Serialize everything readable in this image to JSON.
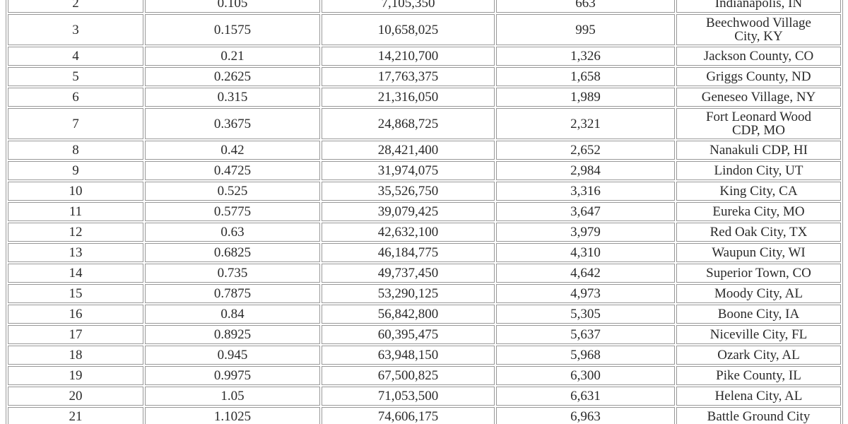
{
  "chart_data": {
    "type": "table",
    "description": "Cropped screenshot of a plain bordered data table; header row not visible. Top row (rank 2) and bottom row (rank 21) are partially cut off by the crop.",
    "columns_visible": false,
    "column_keys": [
      "rank",
      "rate",
      "amount",
      "count",
      "place"
    ],
    "rows": [
      {
        "rank": "2",
        "rate": "0.105",
        "amount": "7,105,350",
        "count": "663",
        "place": "Indianapolis, IN",
        "clipped": "top"
      },
      {
        "rank": "3",
        "rate": "0.1575",
        "amount": "10,658,025",
        "count": "995",
        "place": "Beechwood Village City, KY",
        "place_line1": "Beechwood Village",
        "place_line2": "City, KY"
      },
      {
        "rank": "4",
        "rate": "0.21",
        "amount": "14,210,700",
        "count": "1,326",
        "place": "Jackson County, CO"
      },
      {
        "rank": "5",
        "rate": "0.2625",
        "amount": "17,763,375",
        "count": "1,658",
        "place": "Griggs County, ND"
      },
      {
        "rank": "6",
        "rate": "0.315",
        "amount": "21,316,050",
        "count": "1,989",
        "place": "Geneseo Village, NY"
      },
      {
        "rank": "7",
        "rate": "0.3675",
        "amount": "24,868,725",
        "count": "2,321",
        "place": "Fort Leonard Wood CDP, MO",
        "place_line1": "Fort Leonard Wood",
        "place_line2": "CDP, MO"
      },
      {
        "rank": "8",
        "rate": "0.42",
        "amount": "28,421,400",
        "count": "2,652",
        "place": "Nanakuli CDP, HI"
      },
      {
        "rank": "9",
        "rate": "0.4725",
        "amount": "31,974,075",
        "count": "2,984",
        "place": "Lindon City, UT"
      },
      {
        "rank": "10",
        "rate": "0.525",
        "amount": "35,526,750",
        "count": "3,316",
        "place": "King City, CA"
      },
      {
        "rank": "11",
        "rate": "0.5775",
        "amount": "39,079,425",
        "count": "3,647",
        "place": "Eureka City, MO"
      },
      {
        "rank": "12",
        "rate": "0.63",
        "amount": "42,632,100",
        "count": "3,979",
        "place": "Red Oak City, TX"
      },
      {
        "rank": "13",
        "rate": "0.6825",
        "amount": "46,184,775",
        "count": "4,310",
        "place": "Waupun City, WI"
      },
      {
        "rank": "14",
        "rate": "0.735",
        "amount": "49,737,450",
        "count": "4,642",
        "place": "Superior Town, CO"
      },
      {
        "rank": "15",
        "rate": "0.7875",
        "amount": "53,290,125",
        "count": "4,973",
        "place": "Moody City, AL"
      },
      {
        "rank": "16",
        "rate": "0.84",
        "amount": "56,842,800",
        "count": "5,305",
        "place": "Boone City, IA"
      },
      {
        "rank": "17",
        "rate": "0.8925",
        "amount": "60,395,475",
        "count": "5,637",
        "place": "Niceville City, FL"
      },
      {
        "rank": "18",
        "rate": "0.945",
        "amount": "63,948,150",
        "count": "5,968",
        "place": "Ozark City, AL"
      },
      {
        "rank": "19",
        "rate": "0.9975",
        "amount": "67,500,825",
        "count": "6,300",
        "place": "Pike County, IL"
      },
      {
        "rank": "20",
        "rate": "1.05",
        "amount": "71,053,500",
        "count": "6,631",
        "place": "Helena City, AL"
      },
      {
        "rank": "21",
        "rate": "1.1025",
        "amount": "74,606,175",
        "count": "6,963",
        "place": "Battle Ground City",
        "clipped": "bottom"
      }
    ]
  },
  "colors": {
    "background": "#ffffff",
    "border": "#989898",
    "text": "#2a2a2a"
  }
}
